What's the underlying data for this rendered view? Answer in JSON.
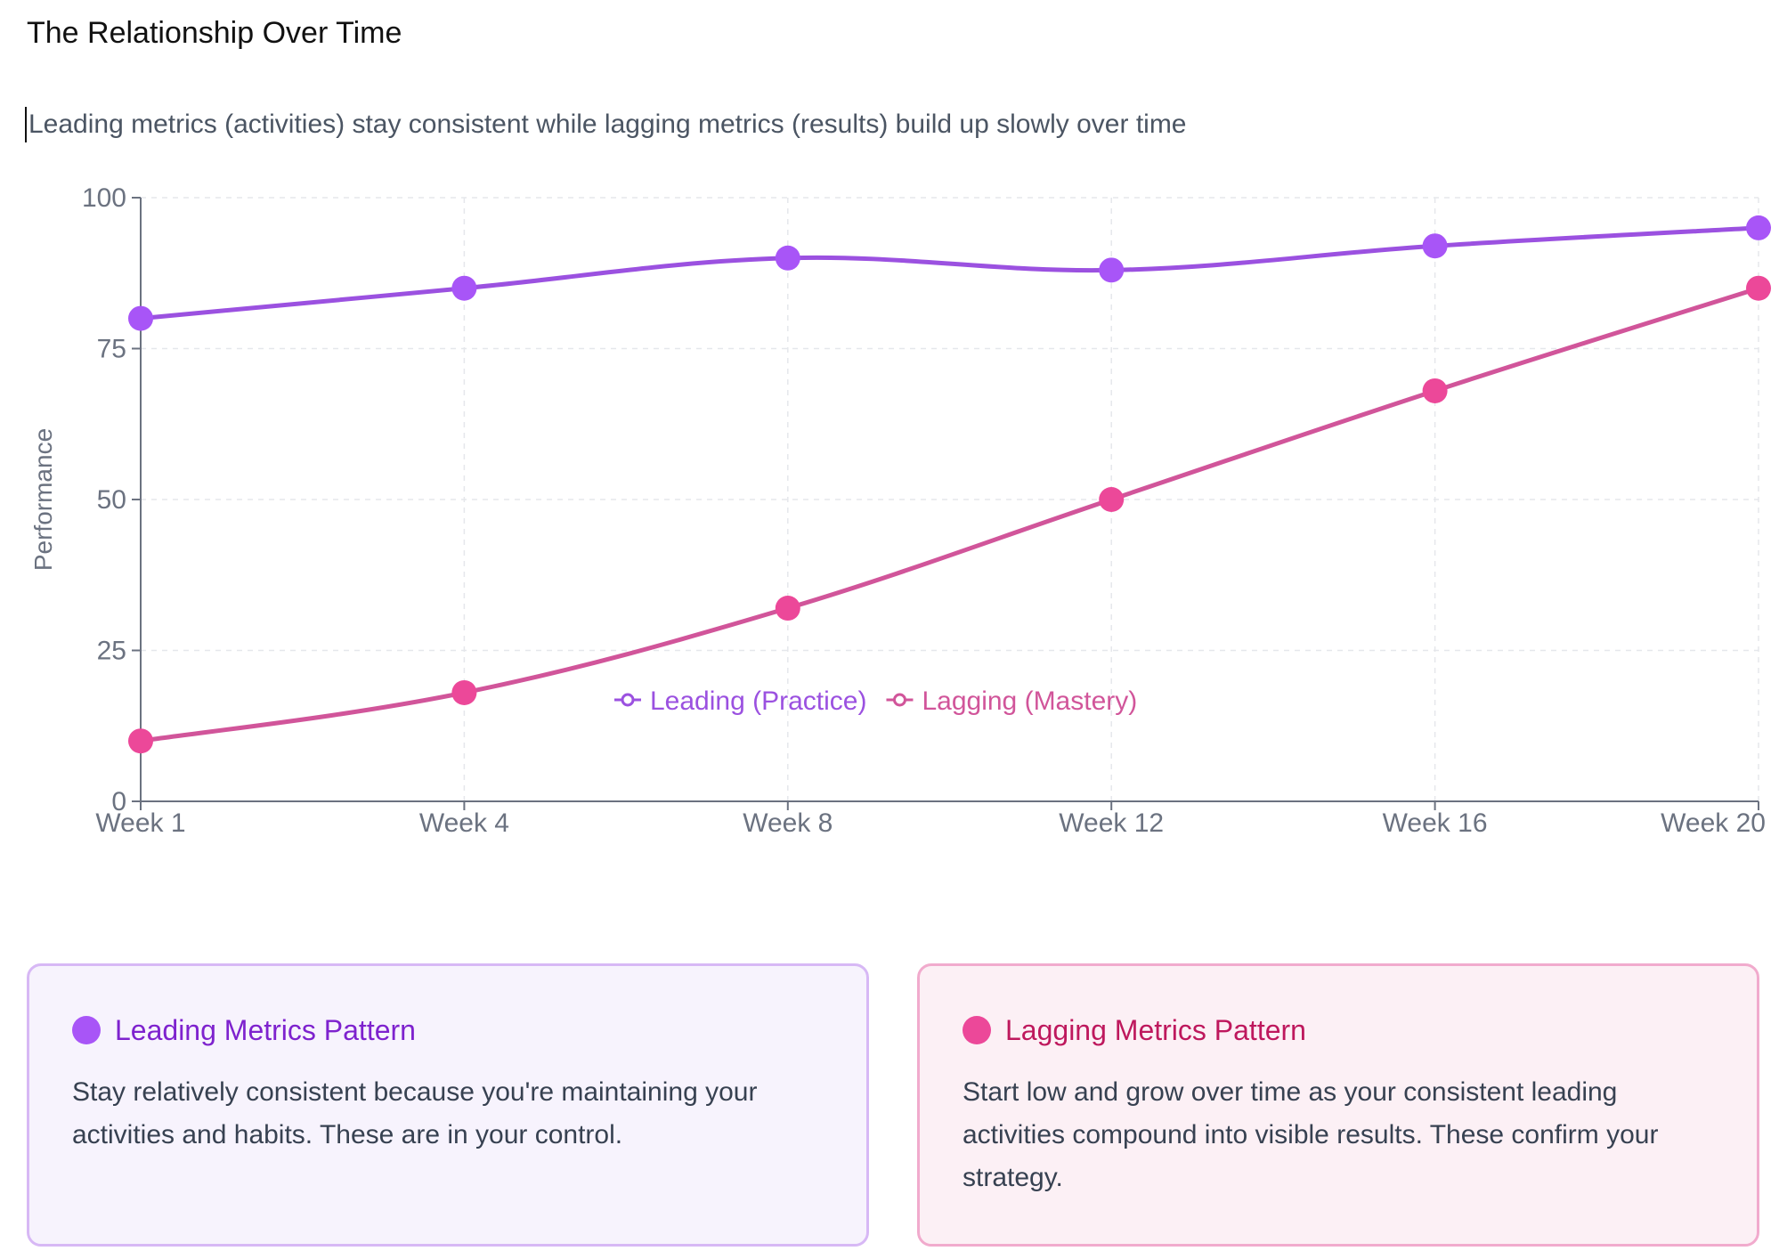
{
  "title": "The Relationship Over Time",
  "subtitle": "Leading metrics (activities) stay consistent while lagging metrics (results) build up slowly over time",
  "chart_data": {
    "type": "line",
    "categories": [
      "Week 1",
      "Week 4",
      "Week 8",
      "Week 12",
      "Week 16",
      "Week 20"
    ],
    "ylabel": "Performance",
    "xlabel": "",
    "ylim": [
      0,
      100
    ],
    "yticks": [
      0,
      25,
      50,
      75,
      100
    ],
    "grid": true,
    "legend_position": "bottom-center",
    "series": [
      {
        "name": "Leading (Practice)",
        "values": [
          80,
          85,
          90,
          88,
          92,
          95
        ],
        "color": "#9b51e0"
      },
      {
        "name": "Lagging (Mastery)",
        "values": [
          10,
          18,
          32,
          50,
          68,
          85
        ],
        "color": "#d1559a"
      }
    ]
  },
  "cards": {
    "leading": {
      "title": "Leading Metrics Pattern",
      "text": "Stay relatively consistent because you're maintaining your activities and habits. These are in your control."
    },
    "lagging": {
      "title": "Lagging Metrics Pattern",
      "text": "Start low and grow over time as your consistent leading activities compound into visible results. These confirm your strategy."
    }
  },
  "colors": {
    "leading_line": "#9b51e0",
    "lagging_line": "#d1559a",
    "leading_dot": "#a855f7",
    "lagging_dot": "#ec4899"
  }
}
